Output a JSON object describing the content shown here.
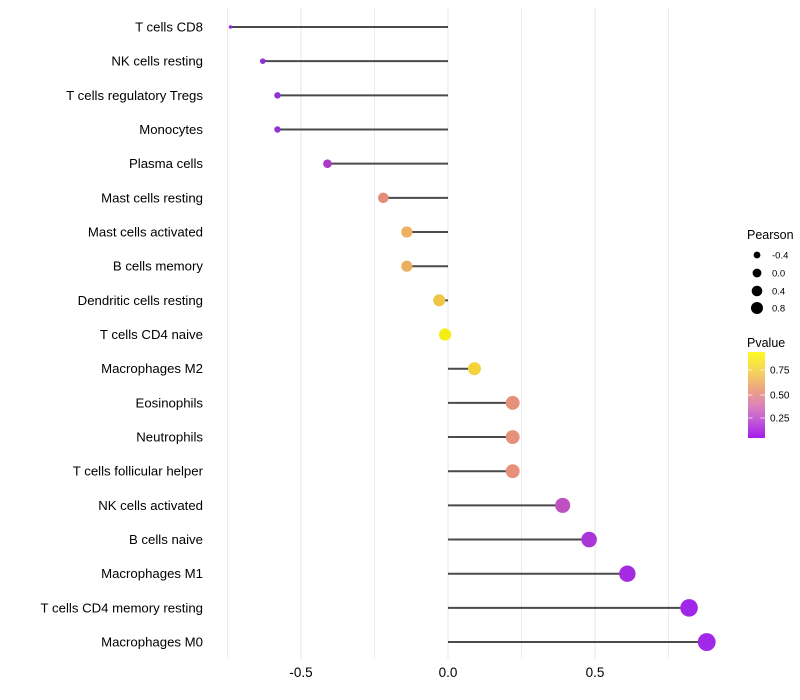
{
  "chart_data": {
    "type": "scatter",
    "subtype": "horizontal-lollipop",
    "title": "",
    "xlabel": "",
    "ylabel": "",
    "x_axis": {
      "tick_labels": [
        "-0.5",
        "0.0",
        "0.5"
      ],
      "tick_values": [
        -0.5,
        0.0,
        0.5
      ],
      "minor_gridline_values": [
        -0.75,
        -0.25,
        0.25,
        0.75
      ],
      "range": [
        -0.82,
        0.95
      ],
      "grid": "vertical gridlines only, light gray, no axis lines"
    },
    "rows": [
      {
        "label": "T cells CD8",
        "pearson": -0.74,
        "dot_color": "#8B2BE1"
      },
      {
        "label": "NK cells resting",
        "pearson": -0.63,
        "dot_color": "#9130DC"
      },
      {
        "label": "T cells regulatory  Tregs",
        "pearson": -0.58,
        "dot_color": "#9331D9"
      },
      {
        "label": "Monocytes",
        "pearson": -0.58,
        "dot_color": "#9432D7"
      },
      {
        "label": "Plasma cells",
        "pearson": -0.41,
        "dot_color": "#A93ACA"
      },
      {
        "label": "Mast cells resting",
        "pearson": -0.22,
        "dot_color": "#E28C79"
      },
      {
        "label": "Mast cells activated",
        "pearson": -0.14,
        "dot_color": "#EDB162"
      },
      {
        "label": "B cells memory",
        "pearson": -0.14,
        "dot_color": "#ECAE5F"
      },
      {
        "label": "Dendritic cells resting",
        "pearson": -0.03,
        "dot_color": "#F0C647"
      },
      {
        "label": "T cells CD4 naive",
        "pearson": -0.01,
        "dot_color": "#F5EE15"
      },
      {
        "label": "Macrophages M2",
        "pearson": 0.09,
        "dot_color": "#F3D23A"
      },
      {
        "label": "Eosinophils",
        "pearson": 0.22,
        "dot_color": "#E7917D"
      },
      {
        "label": "Neutrophils",
        "pearson": 0.22,
        "dot_color": "#E7917D"
      },
      {
        "label": "T cells follicular helper",
        "pearson": 0.22,
        "dot_color": "#E68F7B"
      },
      {
        "label": "NK cells activated",
        "pearson": 0.39,
        "dot_color": "#BF50BF"
      },
      {
        "label": "B cells naive",
        "pearson": 0.48,
        "dot_color": "#AB36D8"
      },
      {
        "label": "Macrophages M1",
        "pearson": 0.61,
        "dot_color": "#A52BE1"
      },
      {
        "label": "T cells CD4 memory resting",
        "pearson": 0.82,
        "dot_color": "#A026E8"
      },
      {
        "label": "Macrophages M0",
        "pearson": 0.88,
        "dot_color": "#A128E6"
      }
    ],
    "legend": {
      "size": {
        "title": "Pearson",
        "entries": [
          {
            "label": "-0.4",
            "value": -0.4
          },
          {
            "label": "0.0",
            "value": 0.0
          },
          {
            "label": "0.4",
            "value": 0.4
          },
          {
            "label": "0.8",
            "value": 0.8
          }
        ],
        "dot_color": "#000000"
      },
      "color": {
        "title": "Pvalue",
        "tick_labels": [
          "0.75",
          "0.50",
          "0.25"
        ],
        "gradient_stops": [
          "#FBFB20",
          "#F4CE62",
          "#EBA084",
          "#DC84BA",
          "#C159D6",
          "#A61CEB"
        ],
        "gradient_offsets": [
          0,
          0.25,
          0.45,
          0.62,
          0.8,
          1.0
        ]
      }
    },
    "style_colors": {
      "stem": "#4A4A4A",
      "grid_major": "#E4E4E4",
      "grid_minor": "#EDEDED",
      "background": "#FFFFFF",
      "text": "#000000"
    }
  }
}
